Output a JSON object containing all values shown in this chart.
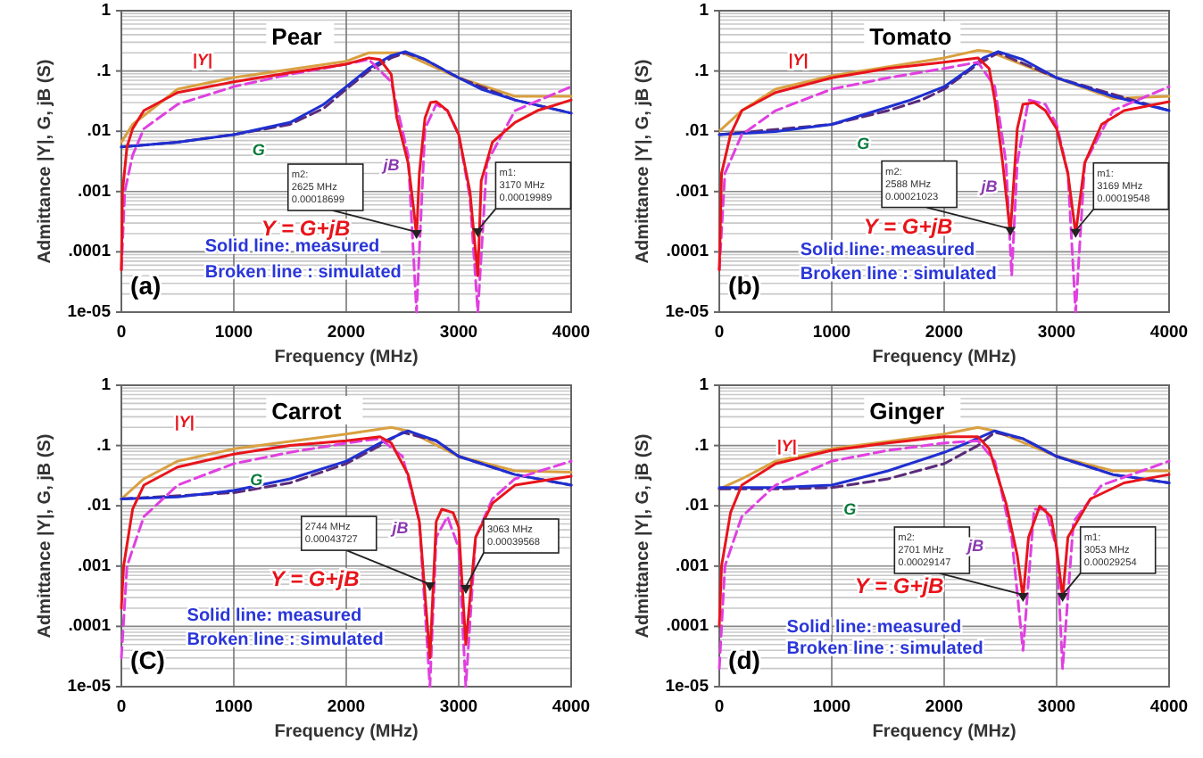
{
  "chart_data": [
    {
      "type": "line",
      "title": "Pear",
      "xlabel": "Frequency (MHz)",
      "ylabel": "Admittance |Y|, G, jB  (S)",
      "log": "y",
      "grid": true,
      "xlim": [
        0,
        4000
      ],
      "xticks": [
        0,
        1000,
        2000,
        3000,
        4000
      ],
      "ylim": [
        1e-05,
        1
      ],
      "yticks": [
        {
          "value": 1e-05,
          "label": "1e-05"
        },
        {
          "value": 0.0001,
          "label": ".0001"
        },
        {
          "value": 0.001,
          "label": ".001"
        },
        {
          "value": 0.01,
          "label": ".01"
        },
        {
          "value": 0.1,
          "label": ".1"
        },
        {
          "value": 1,
          "label": "1"
        }
      ],
      "series": [
        {
          "color": "#d9a040",
          "line_style": "solid",
          "x": [
            0,
            100,
            500,
            1000,
            2000,
            2200,
            2500,
            2600,
            3000,
            3500,
            4000
          ],
          "values": [
            0.0066,
            0.013,
            0.05,
            0.078,
            0.145,
            0.2,
            0.2,
            0.165,
            0.077,
            0.038,
            0.038
          ]
        },
        {
          "color": "#5a2a7a",
          "line_style": "dashed",
          "x": [
            0,
            500,
            1000,
            1500,
            1800,
            2000,
            2200,
            2400,
            2525,
            2700,
            3000,
            3500,
            4000
          ],
          "values": [
            0.0055,
            0.0066,
            0.0088,
            0.013,
            0.024,
            0.05,
            0.1,
            0.165,
            0.2,
            0.155,
            0.077,
            0.033,
            0.02
          ]
        },
        {
          "color": "#1f2fd0",
          "line_style": "solid",
          "x": [
            0,
            500,
            1000,
            1500,
            1800,
            2000,
            2200,
            2400,
            2525,
            2700,
            3000,
            3200,
            3500,
            4000
          ],
          "values": [
            0.0055,
            0.0066,
            0.0088,
            0.014,
            0.028,
            0.055,
            0.11,
            0.18,
            0.21,
            0.155,
            0.077,
            0.05,
            0.033,
            0.02
          ]
        },
        {
          "color": "#e040e0",
          "line_style": "dashed",
          "x": [
            0,
            30,
            100,
            200,
            500,
            1000,
            1500,
            2000,
            2200,
            2400,
            2550,
            2625,
            2700,
            2800,
            2900,
            3000,
            3100,
            3170,
            3250,
            3500,
            4000
          ],
          "values": [
            5e-05,
            0.001,
            0.004,
            0.011,
            0.028,
            0.055,
            0.088,
            0.13,
            0.155,
            0.066,
            0.004,
            1e-05,
            0.011,
            0.028,
            0.022,
            0.0088,
            0.0008,
            1e-05,
            0.003,
            0.022,
            0.055
          ]
        },
        {
          "color": "#e8141b",
          "line_style": "solid",
          "x": [
            0,
            10,
            50,
            100,
            200,
            500,
            1000,
            1500,
            2000,
            2200,
            2300,
            2400,
            2450,
            2550,
            2600,
            2625,
            2650,
            2700,
            2750,
            2800,
            2900,
            3000,
            3100,
            3170,
            3200,
            3300,
            3500,
            3700,
            4000
          ],
          "values": [
            5e-05,
            0.001,
            0.0055,
            0.011,
            0.022,
            0.044,
            0.066,
            0.094,
            0.13,
            0.165,
            0.155,
            0.088,
            0.0165,
            0.003,
            0.0005,
            0.00018,
            0.002,
            0.0165,
            0.03,
            0.031,
            0.022,
            0.0088,
            0.001,
            4e-05,
            0.0015,
            0.0066,
            0.014,
            0.022,
            0.033
          ]
        }
      ],
      "annotations": [
        "Y = G+jB",
        "Solid line: measured",
        "Broken line : simulated",
        "(a)",
        "|Y|",
        "G",
        "jB",
        {
          "text": "m2:\n2625 MHz\n0.00018699",
          "x": 2625,
          "y": 0.00018699
        },
        {
          "text": "m1:\n3170 MHz\n0.00019989",
          "x": 3170,
          "y": 0.00019989
        }
      ]
    },
    {
      "type": "line",
      "title": "Tomato",
      "xlabel": "Frequency (MHz)",
      "ylabel": "Admittance |Y|, G, jB  (S)",
      "log": "y",
      "grid": true,
      "xlim": [
        0,
        4000
      ],
      "xticks": [
        0,
        1000,
        2000,
        3000,
        4000
      ],
      "ylim": [
        1e-05,
        1
      ],
      "yticks": [
        {
          "value": 1e-05,
          "label": "1e-05"
        },
        {
          "value": 0.0001,
          "label": ".0001"
        },
        {
          "value": 0.001,
          "label": ".001"
        },
        {
          "value": 0.01,
          "label": ".01"
        },
        {
          "value": 0.1,
          "label": ".1"
        },
        {
          "value": 1,
          "label": "1"
        }
      ],
      "series": [
        {
          "color": "#d9a040",
          "line_style": "solid",
          "x": [
            0,
            200,
            500,
            1000,
            2000,
            2300,
            2400,
            3000,
            3500,
            4000
          ],
          "values": [
            0.01,
            0.022,
            0.05,
            0.083,
            0.165,
            0.22,
            0.21,
            0.077,
            0.035,
            0.038
          ]
        },
        {
          "color": "#5a2a7a",
          "line_style": "dashed",
          "x": [
            0,
            1000,
            1500,
            1800,
            2000,
            2300,
            2480,
            3000,
            4000
          ],
          "values": [
            0.0088,
            0.013,
            0.022,
            0.033,
            0.05,
            0.13,
            0.2,
            0.077,
            0.022
          ]
        },
        {
          "color": "#1f2fd0",
          "line_style": "solid",
          "x": [
            0,
            500,
            1000,
            1400,
            1700,
            2000,
            2200,
            2350,
            2480,
            2700,
            3000,
            3500,
            4000
          ],
          "values": [
            0.0088,
            0.0099,
            0.013,
            0.022,
            0.033,
            0.055,
            0.1,
            0.165,
            0.21,
            0.155,
            0.077,
            0.038,
            0.022
          ]
        },
        {
          "color": "#e040e0",
          "line_style": "dashed",
          "x": [
            0,
            50,
            200,
            500,
            1000,
            1500,
            2000,
            2300,
            2450,
            2550,
            2600,
            2650,
            2750,
            2900,
            3000,
            3100,
            3169,
            3250,
            3500,
            4000
          ],
          "values": [
            5e-05,
            0.002,
            0.0088,
            0.022,
            0.05,
            0.077,
            0.11,
            0.14,
            0.055,
            0.003,
            4e-05,
            0.003,
            0.033,
            0.028,
            0.013,
            0.002,
            1e-05,
            0.003,
            0.022,
            0.055
          ]
        },
        {
          "color": "#e8141b",
          "line_style": "solid",
          "x": [
            0,
            20,
            100,
            200,
            500,
            1000,
            1500,
            2000,
            2300,
            2400,
            2450,
            2520,
            2588,
            2650,
            2700,
            2800,
            2900,
            3000,
            3100,
            3169,
            3250,
            3400,
            3600,
            4000
          ],
          "values": [
            5e-05,
            0.002,
            0.0088,
            0.022,
            0.044,
            0.077,
            0.11,
            0.14,
            0.165,
            0.11,
            0.033,
            0.003,
            0.0002,
            0.011,
            0.028,
            0.03,
            0.022,
            0.011,
            0.002,
            0.0002,
            0.003,
            0.013,
            0.022,
            0.031
          ]
        }
      ],
      "annotations": [
        "Y = G+jB",
        "Solid line: measured",
        "Broken line : simulated",
        "(b)",
        "|Y|",
        "G",
        "jB",
        {
          "text": "m2:\n2588 MHz\n0.00021023",
          "x": 2588,
          "y": 0.00021023
        },
        {
          "text": "m1:\n3169 MHz\n0.00019548",
          "x": 3169,
          "y": 0.00019548
        }
      ]
    },
    {
      "type": "line",
      "title": "Carrot",
      "xlabel": "Frequency (MHz)",
      "ylabel": "Admittance |Y|, G, jB  (S)",
      "log": "y",
      "grid": true,
      "xlim": [
        0,
        4000
      ],
      "xticks": [
        0,
        1000,
        2000,
        3000,
        4000
      ],
      "ylim": [
        1e-05,
        1
      ],
      "yticks": [
        {
          "value": 1e-05,
          "label": "1e-05"
        },
        {
          "value": 0.0001,
          "label": ".0001"
        },
        {
          "value": 0.001,
          "label": ".001"
        },
        {
          "value": 0.01,
          "label": ".01"
        },
        {
          "value": 0.1,
          "label": ".1"
        },
        {
          "value": 1,
          "label": "1"
        }
      ],
      "series": [
        {
          "color": "#d9a040",
          "line_style": "solid",
          "x": [
            0,
            200,
            500,
            1000,
            2000,
            2400,
            2550,
            3000,
            3500,
            4000
          ],
          "values": [
            0.013,
            0.028,
            0.055,
            0.088,
            0.155,
            0.2,
            0.175,
            0.066,
            0.038,
            0.036
          ]
        },
        {
          "color": "#5a2a7a",
          "line_style": "dashed",
          "x": [
            0,
            1000,
            1500,
            2000,
            2300,
            2500,
            2800,
            3000,
            3500,
            4000
          ],
          "values": [
            0.013,
            0.0165,
            0.024,
            0.05,
            0.1,
            0.165,
            0.12,
            0.066,
            0.033,
            0.022
          ]
        },
        {
          "color": "#1f2fd0",
          "line_style": "solid",
          "x": [
            0,
            500,
            1000,
            1500,
            2000,
            2300,
            2550,
            2800,
            3000,
            3500,
            4000
          ],
          "values": [
            0.013,
            0.014,
            0.018,
            0.028,
            0.055,
            0.11,
            0.175,
            0.12,
            0.066,
            0.033,
            0.022
          ]
        },
        {
          "color": "#e040e0",
          "line_style": "dashed",
          "x": [
            0,
            50,
            200,
            500,
            1000,
            1500,
            2000,
            2300,
            2500,
            2650,
            2744,
            2800,
            2900,
            3000,
            3063,
            3150,
            3300,
            3500,
            4000
          ],
          "values": [
            3e-05,
            0.001,
            0.0066,
            0.022,
            0.05,
            0.077,
            0.11,
            0.13,
            0.066,
            0.0055,
            1e-05,
            0.003,
            0.0066,
            0.002,
            1e-05,
            0.003,
            0.013,
            0.028,
            0.055
          ]
        },
        {
          "color": "#e8141b",
          "line_style": "solid",
          "x": [
            0,
            20,
            100,
            200,
            500,
            1000,
            1500,
            2000,
            2300,
            2400,
            2550,
            2650,
            2744,
            2800,
            2850,
            2950,
            3000,
            3063,
            3150,
            3300,
            3500,
            4000
          ],
          "values": [
            0.0002,
            0.001,
            0.0088,
            0.022,
            0.044,
            0.072,
            0.1,
            0.12,
            0.14,
            0.11,
            0.033,
            0.0055,
            3e-05,
            0.0055,
            0.0088,
            0.0077,
            0.0044,
            5e-05,
            0.003,
            0.011,
            0.022,
            0.031
          ]
        }
      ],
      "annotations": [
        "Y = G+jB",
        "Solid line: measured",
        "Broken line : simulated",
        "(C)",
        "|Y|",
        "G",
        "jB",
        {
          "text": "2744 MHz\n0.00043727",
          "x": 2744,
          "y": 0.00043727
        },
        {
          "text": "3063 MHz\n0.00039568",
          "x": 3063,
          "y": 0.00039568
        }
      ]
    },
    {
      "type": "line",
      "title": "Ginger",
      "xlabel": "Frequency (MHz)",
      "ylabel": "Admittance |Y|, G, jB  (S)",
      "log": "y",
      "grid": true,
      "xlim": [
        0,
        4000
      ],
      "xticks": [
        0,
        1000,
        2000,
        3000,
        4000
      ],
      "ylim": [
        1e-05,
        1
      ],
      "yticks": [
        {
          "value": 1e-05,
          "label": "1e-05"
        },
        {
          "value": 0.0001,
          "label": ".0001"
        },
        {
          "value": 0.001,
          "label": ".001"
        },
        {
          "value": 0.01,
          "label": ".01"
        },
        {
          "value": 0.1,
          "label": ".1"
        },
        {
          "value": 1,
          "label": "1"
        }
      ],
      "series": [
        {
          "color": "#d9a040",
          "line_style": "solid",
          "x": [
            0,
            200,
            500,
            1000,
            2000,
            2300,
            2450,
            3000,
            3500,
            4000
          ],
          "values": [
            0.019,
            0.028,
            0.055,
            0.088,
            0.155,
            0.2,
            0.175,
            0.066,
            0.038,
            0.038
          ]
        },
        {
          "color": "#5a2a7a",
          "line_style": "dashed",
          "x": [
            0,
            500,
            1000,
            1500,
            2000,
            2300,
            2450,
            2700,
            3000,
            3500,
            4000
          ],
          "values": [
            0.019,
            0.019,
            0.02,
            0.028,
            0.05,
            0.1,
            0.165,
            0.13,
            0.066,
            0.033,
            0.024
          ]
        },
        {
          "color": "#1f2fd0",
          "line_style": "solid",
          "x": [
            0,
            500,
            1000,
            1500,
            2000,
            2200,
            2450,
            2700,
            3000,
            3500,
            4000
          ],
          "values": [
            0.02,
            0.02,
            0.022,
            0.038,
            0.077,
            0.11,
            0.175,
            0.13,
            0.066,
            0.033,
            0.024
          ]
        },
        {
          "color": "#e040e0",
          "line_style": "dashed",
          "x": [
            0,
            50,
            200,
            500,
            1000,
            1500,
            2000,
            2300,
            2450,
            2600,
            2701,
            2800,
            2900,
            3000,
            3053,
            3150,
            3400,
            4000
          ],
          "values": [
            2e-05,
            0.001,
            0.0066,
            0.022,
            0.055,
            0.083,
            0.11,
            0.12,
            0.055,
            0.003,
            4e-05,
            0.0088,
            0.0088,
            0.002,
            2e-05,
            0.0055,
            0.022,
            0.055
          ]
        },
        {
          "color": "#e8141b",
          "line_style": "solid",
          "x": [
            0,
            20,
            100,
            200,
            500,
            1000,
            1500,
            2000,
            2300,
            2400,
            2550,
            2650,
            2701,
            2750,
            2850,
            2950,
            3000,
            3053,
            3100,
            3300,
            3600,
            4000
          ],
          "values": [
            0.0001,
            0.001,
            0.0077,
            0.022,
            0.05,
            0.083,
            0.11,
            0.14,
            0.14,
            0.088,
            0.011,
            0.0015,
            0.0003,
            0.003,
            0.0099,
            0.0066,
            0.002,
            0.0003,
            0.003,
            0.013,
            0.024,
            0.033
          ]
        }
      ],
      "annotations": [
        "Y = G+jB",
        "Solid line: measured",
        "Broken line : simulated",
        "(d)",
        "|Y|",
        "G",
        "jB",
        {
          "text": "m2:\n2701 MHz\n0.00029147",
          "x": 2701,
          "y": 0.00029147
        },
        {
          "text": "m1:\n3053 MHz\n0.00029254",
          "x": 3053,
          "y": 0.00029254
        }
      ]
    }
  ]
}
